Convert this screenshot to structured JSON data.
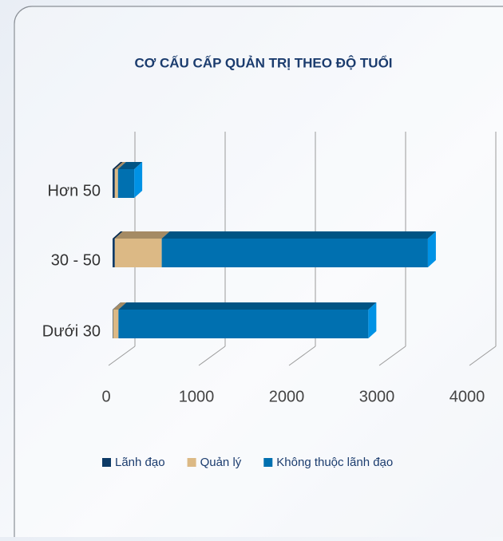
{
  "chart_data": {
    "type": "bar3d_stacked_horizontal",
    "title": "CƠ CẤU CẤP QUẢN TRỊ THEO ĐỘ TUỔI",
    "categories": [
      "Hơn 50",
      "30 - 50",
      "Dưới 30"
    ],
    "series": [
      {
        "name": "Lãnh đạo",
        "color": "#0d3a66",
        "values": [
          25,
          25,
          5
        ]
      },
      {
        "name": "Quản lý",
        "color": "#dcb985",
        "values": [
          35,
          520,
          60
        ]
      },
      {
        "name": "Không thuộc lãnh đạo",
        "color": "#0070b0",
        "values": [
          180,
          2950,
          2770
        ]
      }
    ],
    "xlim": [
      0,
      4000
    ],
    "xticks": [
      0,
      1000,
      2000,
      3000,
      4000
    ],
    "grid": true,
    "legend": "bottom"
  }
}
